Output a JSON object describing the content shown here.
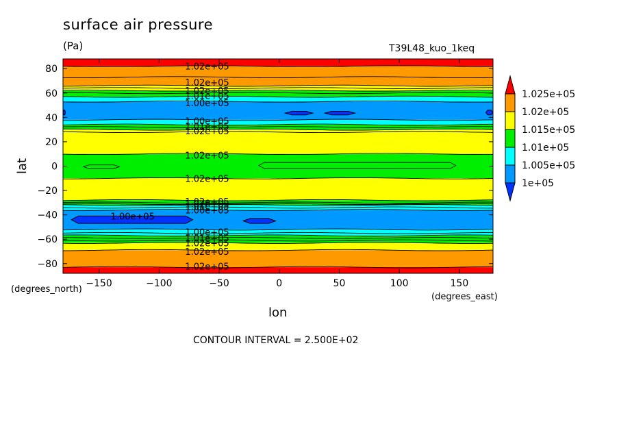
{
  "header": {
    "title": "surface air pressure",
    "units": "(Pa)",
    "run_name": "T39L48_kuo_1keq"
  },
  "footer": {
    "contour_interval": "CONTOUR INTERVAL = 2.500E+02"
  },
  "chart_data": {
    "type": "heatmap",
    "title": "surface air pressure",
    "xlabel": "lon",
    "ylabel": "lat",
    "x_units": "(degrees_east)",
    "y_units": "(degrees_north)",
    "xlim": [
      -180,
      178
    ],
    "ylim": [
      -88,
      88
    ],
    "x_ticks": [
      -150,
      -100,
      -50,
      0,
      50,
      100,
      150
    ],
    "y_ticks": [
      -80,
      -60,
      -40,
      -20,
      0,
      20,
      40,
      60,
      80
    ],
    "x_tick_labels": [
      "−150",
      "−100",
      "−50",
      "0",
      "50",
      "100",
      "150"
    ],
    "y_tick_labels": [
      "−80",
      "−60",
      "−40",
      "−20",
      "0",
      "20",
      "40",
      "60",
      "80"
    ],
    "levels": [
      100000,
      100250,
      100500,
      100750,
      101000,
      101250,
      101500,
      101750,
      102000,
      102250,
      102500
    ],
    "colorbar": {
      "labels": [
        "1.025e+05",
        "1.02e+05",
        "1.015e+05",
        "1.01e+05",
        "1.005e+05",
        "1e+05"
      ],
      "colors": [
        "#ff0000",
        "#ff9900",
        "#ffff00",
        "#00ee00",
        "#00ffff",
        "#0099ff",
        "#0033ff"
      ],
      "extend": "both"
    },
    "bands_by_latitude": [
      {
        "lat_min": 82,
        "lat_max": 88,
        "range": "> 1.025e+05",
        "color": "#ff0000"
      },
      {
        "lat_min": 66,
        "lat_max": 82,
        "range": "1.02e+05 - 1.025e+05",
        "color": "#ff9900"
      },
      {
        "lat_min": 62,
        "lat_max": 66,
        "range": "1.015e+05 - 1.02e+05",
        "color": "#ffff00"
      },
      {
        "lat_min": 57,
        "lat_max": 62,
        "range": "1.01e+05 - 1.015e+05",
        "color": "#00ee00"
      },
      {
        "lat_min": 53,
        "lat_max": 57,
        "range": "1.005e+05 - 1.01e+05",
        "color": "#00ffff"
      },
      {
        "lat_min": 38,
        "lat_max": 53,
        "range": "1e+05 - 1.005e+05",
        "color": "#0099ff"
      },
      {
        "lat_min": 34,
        "lat_max": 38,
        "range": "1.005e+05 - 1.01e+05",
        "color": "#00ffff"
      },
      {
        "lat_min": 30,
        "lat_max": 34,
        "range": "1.01e+05 - 1.015e+05",
        "color": "#00ee00"
      },
      {
        "lat_min": 10,
        "lat_max": 30,
        "range": "1.015e+05 - 1.02e+05",
        "color": "#ffff00"
      },
      {
        "lat_min": -10,
        "lat_max": 10,
        "range": "1.01e+05 - 1.015e+05",
        "color": "#00ee00"
      },
      {
        "lat_min": -28,
        "lat_max": -10,
        "range": "1.015e+05 - 1.02e+05",
        "color": "#ffff00"
      },
      {
        "lat_min": -32,
        "lat_max": -28,
        "range": "1.01e+05 - 1.015e+05",
        "color": "#00ee00"
      },
      {
        "lat_min": -36,
        "lat_max": -32,
        "range": "1.005e+05 - 1.01e+05",
        "color": "#00ffff"
      },
      {
        "lat_min": -52,
        "lat_max": -36,
        "range": "1e+05 - 1.005e+05",
        "color": "#0099ff"
      },
      {
        "lat_min": -57,
        "lat_max": -52,
        "range": "1.005e+05 - 1.01e+05",
        "color": "#00ffff"
      },
      {
        "lat_min": -63,
        "lat_max": -57,
        "range": "1.01e+05 - 1.015e+05",
        "color": "#00ee00"
      },
      {
        "lat_min": -69,
        "lat_max": -63,
        "range": "1.015e+05 - 1.02e+05",
        "color": "#ffff00"
      },
      {
        "lat_min": -83,
        "lat_max": -69,
        "range": "1.02e+05 - 1.025e+05",
        "color": "#ff9900"
      },
      {
        "lat_min": -88,
        "lat_max": -83,
        "range": "> 1.025e+05",
        "color": "#ff0000"
      }
    ],
    "contour_lines_lat": [
      82,
      73,
      66,
      64,
      62,
      60,
      57,
      53,
      38,
      34,
      32,
      30,
      28,
      10,
      -10,
      -28,
      -30,
      -31,
      -32,
      -34,
      -36,
      -52,
      -55,
      -57,
      -59,
      -61,
      -63,
      -69,
      -83
    ],
    "low_pressure_cells": [
      {
        "lon_min": -180,
        "lon_max": -178,
        "lat_min": 42,
        "lat_max": 46,
        "color": "#0033ff"
      },
      {
        "lon_min": 5,
        "lon_max": 28,
        "lat_min": 42,
        "lat_max": 45,
        "color": "#0033ff"
      },
      {
        "lon_min": 38,
        "lon_max": 63,
        "lat_min": 42,
        "lat_max": 45,
        "color": "#0033ff"
      },
      {
        "lon_min": 172,
        "lon_max": 178,
        "lat_min": 42,
        "lat_max": 46,
        "color": "#0033ff"
      },
      {
        "lon_min": -173,
        "lon_max": -72,
        "lat_min": -47,
        "lat_max": -41,
        "color": "#0033ff"
      },
      {
        "lon_min": -30,
        "lon_max": -3,
        "lat_min": -47,
        "lat_max": -43,
        "color": "#0033ff"
      }
    ],
    "equatorial_contours": [
      {
        "lon_min": -163,
        "lon_max": -133,
        "lat_min": -2,
        "lat_max": 1
      },
      {
        "lon_min": -17,
        "lon_max": 147,
        "lat_min": -2,
        "lat_max": 3
      }
    ],
    "contour_labels": [
      {
        "text": "1.02e+05",
        "lon": -60,
        "lat": 82
      },
      {
        "text": "1.02e+05",
        "lon": -60,
        "lat": 69
      },
      {
        "text": "1.02e+05",
        "lon": -60,
        "lat": 62
      },
      {
        "text": "1.01e+05",
        "lon": -60,
        "lat": 58
      },
      {
        "text": "1.00e+05",
        "lon": -60,
        "lat": 52
      },
      {
        "text": "1.00e+05",
        "lon": -60,
        "lat": 37
      },
      {
        "text": "1.01e+05",
        "lon": -60,
        "lat": 33
      },
      {
        "text": "1.02e+05",
        "lon": -60,
        "lat": 29
      },
      {
        "text": "1.02e+05",
        "lon": -60,
        "lat": 9
      },
      {
        "text": "1.02e+05",
        "lon": -60,
        "lat": -10
      },
      {
        "text": "1.02e+05",
        "lon": -60,
        "lat": -29
      },
      {
        "text": "1.02e+05",
        "lon": -60,
        "lat": -31
      },
      {
        "text": "1.01e+05",
        "lon": -60,
        "lat": -33
      },
      {
        "text": "1.00e+05",
        "lon": -60,
        "lat": -36
      },
      {
        "text": "1.00e+05",
        "lon": -122,
        "lat": -41
      },
      {
        "text": "1.00e+05",
        "lon": -60,
        "lat": -54
      },
      {
        "text": "1.01e+05",
        "lon": -60,
        "lat": -59
      },
      {
        "text": "1.02e+05",
        "lon": -60,
        "lat": -63
      },
      {
        "text": "1.02e+05",
        "lon": -60,
        "lat": -70
      },
      {
        "text": "1.02e+05",
        "lon": -60,
        "lat": -82
      }
    ]
  }
}
